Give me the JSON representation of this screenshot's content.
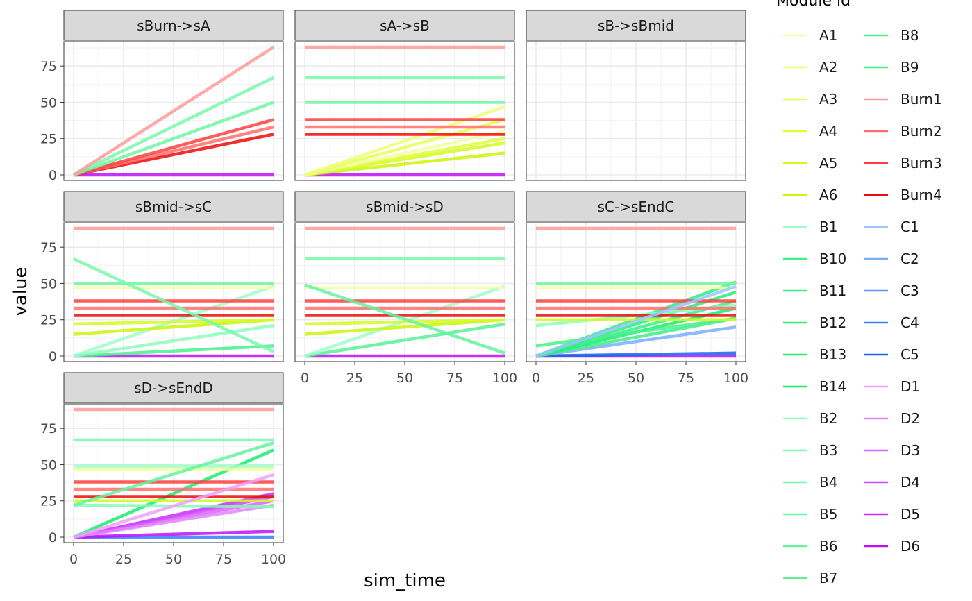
{
  "chart_data": {
    "type": "line",
    "layout": "facet-wrap",
    "xlabel": "sim_time",
    "ylabel": "value",
    "xlim": [
      0,
      100
    ],
    "ylim": [
      0,
      88
    ],
    "xticks": [
      "0",
      "25",
      "50",
      "75",
      "100"
    ],
    "yticks": [
      "0",
      "25",
      "50",
      "75"
    ],
    "grid": true,
    "legend": {
      "title": "Module id",
      "placement": "right",
      "columns": [
        [
          "A1",
          "A2",
          "A3",
          "A4",
          "A5",
          "A6",
          "B1",
          "B10",
          "B11",
          "B12",
          "B13",
          "B14",
          "B2",
          "B3",
          "B4",
          "B5",
          "B6",
          "B7"
        ],
        [
          "B8",
          "B9",
          "Burn1",
          "Burn2",
          "Burn3",
          "Burn4",
          "C1",
          "C2",
          "C3",
          "C4",
          "C5",
          "D1",
          "D2",
          "D3",
          "D4",
          "D5",
          "D6"
        ]
      ]
    },
    "colors": {
      "A1": "#F4FFA0",
      "A2": "#EEFF78",
      "A3": "#E6FF58",
      "A4": "#DDFF3C",
      "A5": "#D4FA20",
      "A6": "#CCF50A",
      "B1": "#9CFFC8",
      "B10": "#3CF090",
      "B11": "#34F088",
      "B12": "#2EEE82",
      "B13": "#24EE7C",
      "B14": "#14EE6C",
      "B2": "#8CFFBC",
      "B3": "#82FBB4",
      "B4": "#78F8AC",
      "B5": "#6EF6A4",
      "B6": "#62F49C",
      "B7": "#56F294",
      "B8": "#4AF08C",
      "B9": "#40EE86",
      "Burn1": "#FF9A9A",
      "Burn2": "#FF6E6E",
      "Burn3": "#FF4040",
      "Burn4": "#EE0A0A",
      "C1": "#9CC4FF",
      "C2": "#7AAEFF",
      "C3": "#5A96FF",
      "C4": "#3A80FF",
      "C5": "#1466F0",
      "D1": "#EEA0FF",
      "D2": "#E482FF",
      "D3": "#DA64FF",
      "D4": "#D048FF",
      "D5": "#C82EFF",
      "D6": "#C010FA"
    },
    "panels": [
      {
        "title": "sBurn->sA",
        "series": [
          {
            "name": "D6",
            "x": [
              0,
              100
            ],
            "y": [
              0,
              0
            ]
          },
          {
            "name": "Burn4",
            "x": [
              0,
              100
            ],
            "y": [
              0,
              28
            ]
          },
          {
            "name": "Burn2",
            "x": [
              0,
              100
            ],
            "y": [
              0,
              33
            ]
          },
          {
            "name": "Burn3",
            "x": [
              0,
              100
            ],
            "y": [
              0,
              38
            ]
          },
          {
            "name": "B5",
            "x": [
              0,
              100
            ],
            "y": [
              0,
              50
            ]
          },
          {
            "name": "B4",
            "x": [
              0,
              100
            ],
            "y": [
              0,
              67
            ]
          },
          {
            "name": "Burn1",
            "x": [
              0,
              100
            ],
            "y": [
              0,
              88
            ]
          }
        ]
      },
      {
        "title": "sA->sB",
        "series": [
          {
            "name": "D6",
            "x": [
              0,
              100
            ],
            "y": [
              0,
              0
            ]
          },
          {
            "name": "A6",
            "x": [
              0,
              100
            ],
            "y": [
              0,
              15
            ]
          },
          {
            "name": "A5",
            "x": [
              0,
              100
            ],
            "y": [
              0,
              22
            ]
          },
          {
            "name": "A4",
            "x": [
              0,
              100
            ],
            "y": [
              0,
              25
            ]
          },
          {
            "name": "A1",
            "x": [
              0,
              100
            ],
            "y": [
              0,
              30
            ]
          },
          {
            "name": "A3",
            "x": [
              0,
              100
            ],
            "y": [
              0,
              38
            ]
          },
          {
            "name": "A2",
            "x": [
              0,
              100
            ],
            "y": [
              0,
              47
            ]
          },
          {
            "name": "Burn4",
            "x": [
              0,
              100
            ],
            "y": [
              28,
              28
            ]
          },
          {
            "name": "Burn2",
            "x": [
              0,
              100
            ],
            "y": [
              33,
              33
            ]
          },
          {
            "name": "Burn3",
            "x": [
              0,
              100
            ],
            "y": [
              38,
              38
            ]
          },
          {
            "name": "B5",
            "x": [
              0,
              100
            ],
            "y": [
              50,
              50
            ]
          },
          {
            "name": "B4",
            "x": [
              0,
              100
            ],
            "y": [
              67,
              67
            ]
          },
          {
            "name": "Burn1",
            "x": [
              0,
              100
            ],
            "y": [
              88,
              88
            ]
          }
        ]
      },
      {
        "title": "sB->sBmid",
        "series": []
      },
      {
        "title": "sBmid->sC",
        "series": [
          {
            "name": "D6",
            "x": [
              0,
              100
            ],
            "y": [
              0,
              0
            ]
          },
          {
            "name": "B8",
            "x": [
              0,
              100
            ],
            "y": [
              0,
              7
            ]
          },
          {
            "name": "B2",
            "x": [
              0,
              100
            ],
            "y": [
              0,
              21
            ]
          },
          {
            "name": "B1",
            "x": [
              0,
              100
            ],
            "y": [
              0,
              48
            ]
          },
          {
            "name": "A6",
            "x": [
              0,
              100
            ],
            "y": [
              15,
              25
            ]
          },
          {
            "name": "A5",
            "x": [
              0,
              100
            ],
            "y": [
              22,
              25
            ]
          },
          {
            "name": "A1",
            "x": [
              0,
              100
            ],
            "y": [
              47,
              47
            ]
          },
          {
            "name": "Burn4",
            "x": [
              0,
              100
            ],
            "y": [
              28,
              28
            ]
          },
          {
            "name": "Burn2",
            "x": [
              0,
              100
            ],
            "y": [
              33,
              33
            ]
          },
          {
            "name": "Burn3",
            "x": [
              0,
              100
            ],
            "y": [
              38,
              38
            ]
          },
          {
            "name": "B5",
            "x": [
              0,
              100
            ],
            "y": [
              50,
              50
            ]
          },
          {
            "name": "B4",
            "x": [
              0,
              100
            ],
            "y": [
              67,
              3
            ]
          },
          {
            "name": "Burn1",
            "x": [
              0,
              100
            ],
            "y": [
              88,
              88
            ]
          }
        ]
      },
      {
        "title": "sBmid->sD",
        "series": [
          {
            "name": "D6",
            "x": [
              0,
              100
            ],
            "y": [
              0,
              0
            ]
          },
          {
            "name": "B7",
            "x": [
              0,
              100
            ],
            "y": [
              0,
              22
            ]
          },
          {
            "name": "B1",
            "x": [
              0,
              100
            ],
            "y": [
              0,
              48
            ]
          },
          {
            "name": "A6",
            "x": [
              0,
              100
            ],
            "y": [
              15,
              25
            ]
          },
          {
            "name": "A5",
            "x": [
              0,
              100
            ],
            "y": [
              22,
              25
            ]
          },
          {
            "name": "A1",
            "x": [
              0,
              100
            ],
            "y": [
              47,
              47
            ]
          },
          {
            "name": "Burn4",
            "x": [
              0,
              100
            ],
            "y": [
              28,
              28
            ]
          },
          {
            "name": "Burn2",
            "x": [
              0,
              100
            ],
            "y": [
              33,
              33
            ]
          },
          {
            "name": "Burn3",
            "x": [
              0,
              100
            ],
            "y": [
              38,
              38
            ]
          },
          {
            "name": "B6",
            "x": [
              0,
              100
            ],
            "y": [
              49,
              2
            ]
          },
          {
            "name": "B4",
            "x": [
              0,
              100
            ],
            "y": [
              67,
              67
            ]
          },
          {
            "name": "Burn1",
            "x": [
              0,
              100
            ],
            "y": [
              88,
              88
            ]
          }
        ]
      },
      {
        "title": "sC->sEndC",
        "series": [
          {
            "name": "D6",
            "x": [
              0,
              100
            ],
            "y": [
              0,
              0
            ]
          },
          {
            "name": "C5",
            "x": [
              0,
              100
            ],
            "y": [
              0,
              2
            ]
          },
          {
            "name": "C2",
            "x": [
              0,
              100
            ],
            "y": [
              0,
              20
            ]
          },
          {
            "name": "B9",
            "x": [
              0,
              100
            ],
            "y": [
              0,
              26
            ]
          },
          {
            "name": "B14",
            "x": [
              0,
              100
            ],
            "y": [
              0,
              33
            ]
          },
          {
            "name": "B11",
            "x": [
              0,
              100
            ],
            "y": [
              0,
              38
            ]
          },
          {
            "name": "B13",
            "x": [
              0,
              100
            ],
            "y": [
              0,
              44
            ]
          },
          {
            "name": "B12",
            "x": [
              0,
              100
            ],
            "y": [
              0,
              51
            ]
          },
          {
            "name": "B8",
            "x": [
              0,
              100
            ],
            "y": [
              7,
              26
            ]
          },
          {
            "name": "B2",
            "x": [
              0,
              100
            ],
            "y": [
              21,
              35
            ]
          },
          {
            "name": "A5",
            "x": [
              0,
              100
            ],
            "y": [
              25,
              25
            ]
          },
          {
            "name": "A1",
            "x": [
              0,
              100
            ],
            "y": [
              47,
              47
            ]
          },
          {
            "name": "Burn4",
            "x": [
              0,
              100
            ],
            "y": [
              28,
              28
            ]
          },
          {
            "name": "Burn2",
            "x": [
              0,
              100
            ],
            "y": [
              33,
              33
            ]
          },
          {
            "name": "Burn3",
            "x": [
              0,
              100
            ],
            "y": [
              38,
              38
            ]
          },
          {
            "name": "B5",
            "x": [
              0,
              100
            ],
            "y": [
              50,
              50
            ]
          },
          {
            "name": "C1",
            "x": [
              0,
              100
            ],
            "y": [
              0,
              48
            ]
          },
          {
            "name": "Burn1",
            "x": [
              0,
              100
            ],
            "y": [
              88,
              88
            ]
          }
        ]
      },
      {
        "title": "sD->sEndD",
        "series": [
          {
            "name": "C4",
            "x": [
              0,
              100
            ],
            "y": [
              0,
              0
            ]
          },
          {
            "name": "D6",
            "x": [
              0,
              100
            ],
            "y": [
              0,
              4
            ]
          },
          {
            "name": "D5",
            "x": [
              0,
              100
            ],
            "y": [
              0,
              30
            ]
          },
          {
            "name": "D4",
            "x": [
              0,
              100
            ],
            "y": [
              0,
              28
            ]
          },
          {
            "name": "D3",
            "x": [
              0,
              100
            ],
            "y": [
              0,
              25
            ]
          },
          {
            "name": "D2",
            "x": [
              0,
              100
            ],
            "y": [
              0,
              22
            ]
          },
          {
            "name": "B14",
            "x": [
              0,
              100
            ],
            "y": [
              0,
              60
            ]
          },
          {
            "name": "B3",
            "x": [
              0,
              100
            ],
            "y": [
              22,
              21
            ]
          },
          {
            "name": "A5",
            "x": [
              0,
              100
            ],
            "y": [
              25,
              25
            ]
          },
          {
            "name": "A1",
            "x": [
              0,
              100
            ],
            "y": [
              47,
              47
            ]
          },
          {
            "name": "B1",
            "x": [
              0,
              100
            ],
            "y": [
              49,
              49
            ]
          },
          {
            "name": "Burn4",
            "x": [
              0,
              100
            ],
            "y": [
              28,
              28
            ]
          },
          {
            "name": "Burn2",
            "x": [
              0,
              100
            ],
            "y": [
              33,
              33
            ]
          },
          {
            "name": "Burn3",
            "x": [
              0,
              100
            ],
            "y": [
              38,
              38
            ]
          },
          {
            "name": "B6",
            "x": [
              0,
              100
            ],
            "y": [
              22,
              65
            ]
          },
          {
            "name": "B4",
            "x": [
              0,
              100
            ],
            "y": [
              67,
              67
            ]
          },
          {
            "name": "D1",
            "x": [
              0,
              100
            ],
            "y": [
              0,
              43
            ]
          },
          {
            "name": "Burn1",
            "x": [
              0,
              100
            ],
            "y": [
              88,
              88
            ]
          }
        ]
      }
    ]
  }
}
